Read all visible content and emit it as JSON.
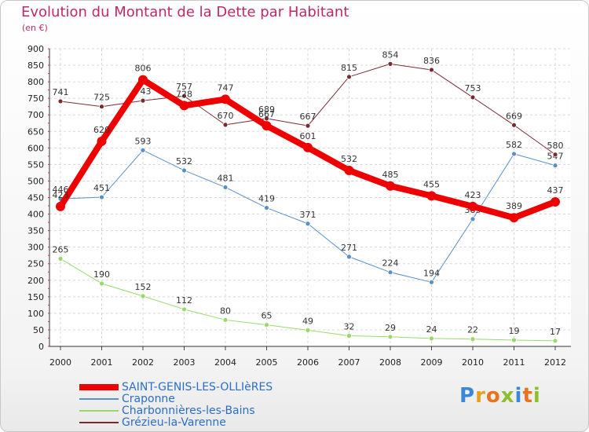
{
  "header": {
    "title": "Evolution du Montant de la Dette par Habitant",
    "unit": "(en €)"
  },
  "logo": {
    "text": "Proxiti",
    "letters": [
      "P",
      "r",
      "o",
      "x",
      "i",
      "t",
      "i"
    ],
    "colors": [
      "#3a86d8",
      "#e2a21c",
      "#e8731c",
      "#8bbf2b",
      "#3a86d8",
      "#e8731c",
      "#8bbf2b"
    ]
  },
  "chart_data": {
    "type": "line",
    "title": "Evolution du Montant de la Dette par Habitant",
    "ylabel": "(en €)",
    "x": [
      "2000",
      "2001",
      "2002",
      "2003",
      "2004",
      "2005",
      "2006",
      "2007",
      "2008",
      "2009",
      "2010",
      "2011",
      "2012"
    ],
    "ylim": [
      0,
      900
    ],
    "yticks": [
      0,
      50,
      100,
      150,
      200,
      250,
      300,
      350,
      400,
      450,
      500,
      550,
      600,
      650,
      700,
      750,
      800,
      850,
      900
    ],
    "grid": true,
    "legend_position": "bottom-left",
    "series": [
      {
        "name": "SAINT-GENIS-LES-OLLIèRES",
        "color": "#ee0000",
        "values": [
          423,
          620,
          806,
          728,
          747,
          667,
          601,
          532,
          485,
          455,
          423,
          389,
          437
        ]
      },
      {
        "name": "Craponne",
        "color": "#5a8fc8",
        "values": [
          446,
          451,
          593,
          532,
          481,
          419,
          371,
          271,
          224,
          194,
          385,
          582,
          547
        ]
      },
      {
        "name": "Charbonnières-les-Bains",
        "color": "#99d96b",
        "values": [
          265,
          190,
          152,
          112,
          80,
          65,
          49,
          32,
          29,
          24,
          22,
          19,
          17
        ]
      },
      {
        "name": "Grézieu-la-Varenne",
        "color": "#7a2a32",
        "values": [
          741,
          725,
          743,
          757,
          670,
          689,
          667,
          815,
          854,
          836,
          753,
          669,
          580
        ]
      }
    ]
  }
}
